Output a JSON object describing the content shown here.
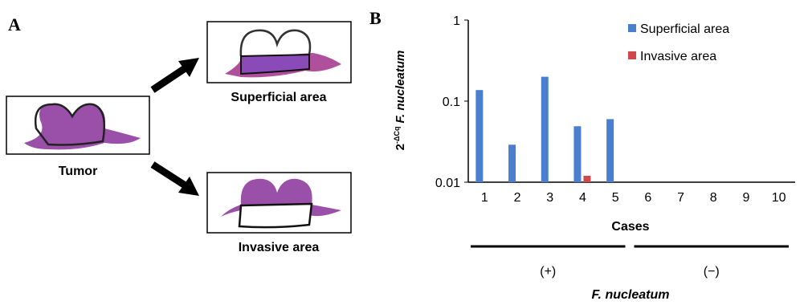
{
  "panels": {
    "a": "A",
    "b": "B"
  },
  "diagram": {
    "tumor": "Tumor",
    "superficial": "Superficial area",
    "invasive": "Invasive area"
  },
  "chart_data": {
    "type": "bar",
    "categories": [
      "1",
      "2",
      "3",
      "4",
      "5",
      "6",
      "7",
      "8",
      "9",
      "10"
    ],
    "series": [
      {
        "name": "Superficial area",
        "color": "#4a7fd0",
        "values": [
          0.137,
          0.029,
          0.2,
          0.049,
          0.06,
          null,
          null,
          null,
          null,
          null
        ]
      },
      {
        "name": "Invasive area",
        "color": "#d0484b",
        "values": [
          null,
          null,
          null,
          0.012,
          null,
          null,
          null,
          null,
          null,
          null
        ]
      }
    ],
    "ylim": [
      0.01,
      1
    ],
    "yticks": [
      0.01,
      0.1,
      1
    ],
    "log_scale": true,
    "ylabel": {
      "base": "2",
      "exponent": "-ΔCq",
      "name": "F. nucleatum"
    },
    "xlabel": "Cases",
    "groups": [
      "(+)",
      "(−)"
    ],
    "group_title": "F. nucleatum",
    "legend": "upper right"
  }
}
